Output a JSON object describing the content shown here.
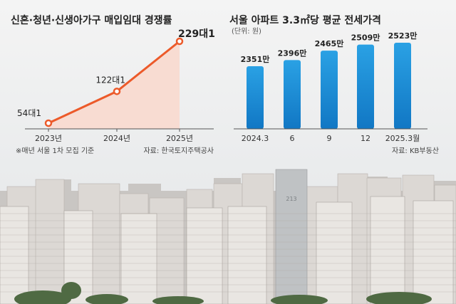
{
  "chart_data": [
    {
      "type": "line",
      "title": "신혼·청년·신생아가구 매입임대 경쟁률",
      "categories": [
        "2023년",
        "2024년",
        "2025년"
      ],
      "values": [
        54,
        122,
        229
      ],
      "value_labels": [
        "54대1",
        "122대1",
        "229대1"
      ],
      "footnote": "※매년 서울 1차 모집 기준",
      "source": "자료: 한국토지주택공사",
      "colors": {
        "line": "#ec5a2a",
        "area": "#f8dcd2"
      }
    },
    {
      "type": "bar",
      "title": "서울 아파트 3.3㎡당 평균 전세가격",
      "unit": "(단위: 원)",
      "categories": [
        "2024.3",
        "6",
        "9",
        "12",
        "2025.3월"
      ],
      "values": [
        2351,
        2396,
        2465,
        2509,
        2523
      ],
      "value_labels": [
        "2351만",
        "2396만",
        "2465만",
        "2509만",
        "2523만"
      ],
      "source": "자료: KB부동산",
      "colors": {
        "bar": "#1e90d6"
      }
    }
  ],
  "photo": {
    "building_sign": "213"
  }
}
